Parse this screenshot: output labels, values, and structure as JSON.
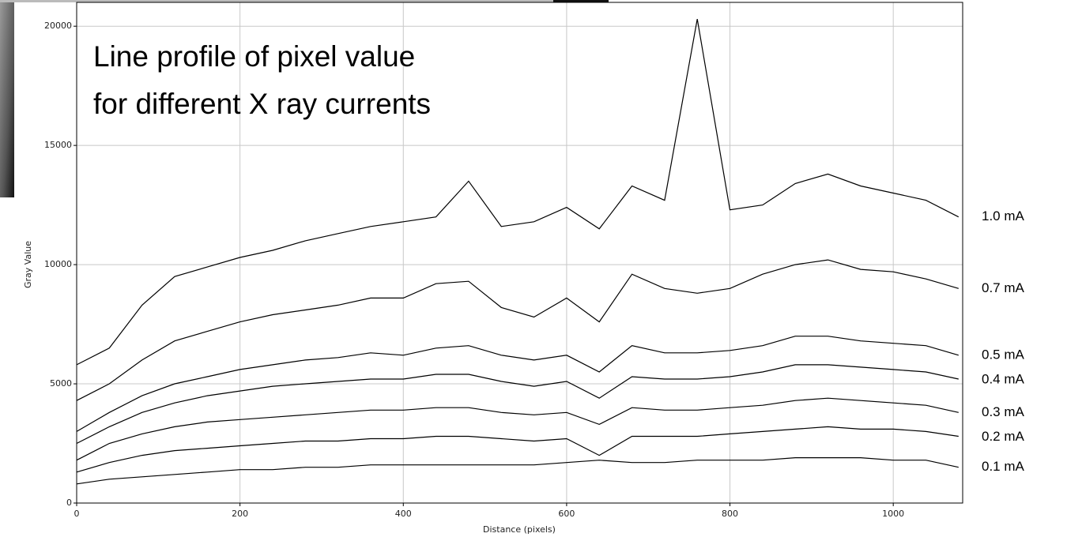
{
  "chart_data": {
    "type": "line",
    "title": "Line profile of pixel value",
    "subtitle": "for different X ray currents",
    "x_label": "Distance (pixels)",
    "y_label": "Gray Value",
    "x": [
      0,
      40,
      80,
      120,
      160,
      200,
      240,
      280,
      320,
      360,
      400,
      440,
      480,
      520,
      560,
      600,
      640,
      680,
      720,
      760,
      800,
      840,
      880,
      920,
      960,
      1000,
      1040,
      1080
    ],
    "series": [
      {
        "name": "1.0 mA",
        "color": "#000000",
        "values": [
          5800,
          6500,
          8300,
          9500,
          9900,
          10300,
          10600,
          11000,
          11300,
          11600,
          11800,
          12000,
          13500,
          11600,
          11800,
          12400,
          11500,
          13300,
          12700,
          20300,
          12300,
          12500,
          13400,
          13800,
          13300,
          13000,
          12700,
          12000
        ]
      },
      {
        "name": "0.7 mA",
        "color": "#000000",
        "values": [
          4300,
          5000,
          6000,
          6800,
          7200,
          7600,
          7900,
          8100,
          8300,
          8600,
          8600,
          9200,
          9300,
          8200,
          7800,
          8600,
          7600,
          9600,
          9000,
          8800,
          9000,
          9600,
          10000,
          10200,
          9800,
          9700,
          9400,
          9000
        ]
      },
      {
        "name": "0.5 mA",
        "color": "#000000",
        "values": [
          3000,
          3800,
          4500,
          5000,
          5300,
          5600,
          5800,
          6000,
          6100,
          6300,
          6200,
          6500,
          6600,
          6200,
          6000,
          6200,
          5500,
          6600,
          6300,
          6300,
          6400,
          6600,
          7000,
          7000,
          6800,
          6700,
          6600,
          6200
        ]
      },
      {
        "name": "0.4 mA",
        "color": "#000000",
        "values": [
          2500,
          3200,
          3800,
          4200,
          4500,
          4700,
          4900,
          5000,
          5100,
          5200,
          5200,
          5400,
          5400,
          5100,
          4900,
          5100,
          4400,
          5300,
          5200,
          5200,
          5300,
          5500,
          5800,
          5800,
          5700,
          5600,
          5500,
          5200
        ]
      },
      {
        "name": "0.3 mA",
        "color": "#000000",
        "values": [
          1800,
          2500,
          2900,
          3200,
          3400,
          3500,
          3600,
          3700,
          3800,
          3900,
          3900,
          4000,
          4000,
          3800,
          3700,
          3800,
          3300,
          4000,
          3900,
          3900,
          4000,
          4100,
          4300,
          4400,
          4300,
          4200,
          4100,
          3800
        ]
      },
      {
        "name": "0.2 mA",
        "color": "#000000",
        "values": [
          1300,
          1700,
          2000,
          2200,
          2300,
          2400,
          2500,
          2600,
          2600,
          2700,
          2700,
          2800,
          2800,
          2700,
          2600,
          2700,
          2000,
          2800,
          2800,
          2800,
          2900,
          3000,
          3100,
          3200,
          3100,
          3100,
          3000,
          2800
        ]
      },
      {
        "name": "0.1 mA",
        "color": "#000000",
        "values": [
          800,
          1000,
          1100,
          1200,
          1300,
          1400,
          1400,
          1500,
          1500,
          1600,
          1600,
          1600,
          1600,
          1600,
          1600,
          1700,
          1800,
          1700,
          1700,
          1800,
          1800,
          1800,
          1900,
          1900,
          1900,
          1800,
          1800,
          1500
        ]
      }
    ],
    "xlim": [
      0,
      1085
    ],
    "ylim": [
      0,
      21000
    ],
    "xticks": [
      0,
      200,
      400,
      600,
      800,
      1000
    ],
    "yticks": [
      0,
      5000,
      10000,
      15000,
      20000
    ],
    "grid": true
  }
}
